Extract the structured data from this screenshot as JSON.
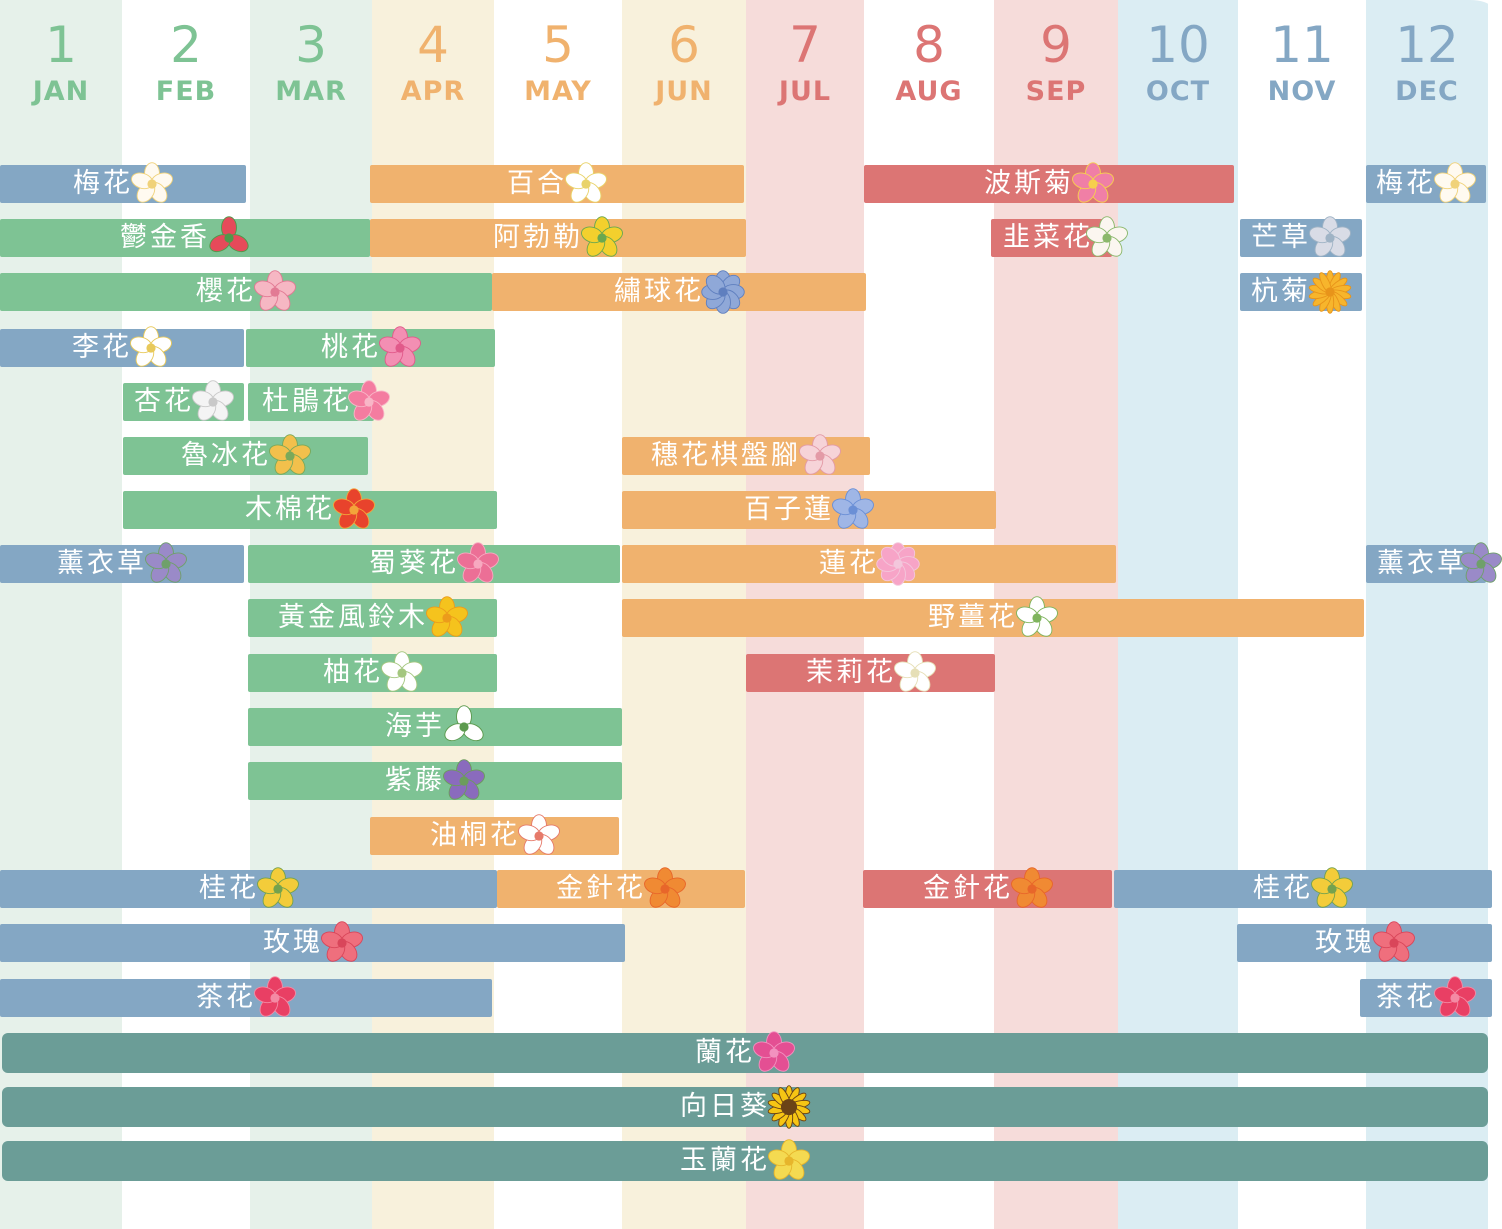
{
  "colors": {
    "spring_band": "#e6f1ea",
    "summer_band": "#f8f1dc",
    "july_sep_band": "#f6dcda",
    "winter_band": "#dbedf3",
    "white_band": "#ffffff",
    "winter_bar": "#84a7c4",
    "spring_bar": "#7ec394",
    "summer_bar": "#f0b26e",
    "autumn_bar": "#dc7574",
    "year_bar": "#6b9d97",
    "spring_text": "#7ec394",
    "summer_text": "#f0b26e",
    "autumn_text": "#dc7574",
    "winter_text": "#84a7c4"
  },
  "chart_data": {
    "type": "gantt",
    "x_unit": "month",
    "months": [
      {
        "num": "1",
        "abbr": "JAN"
      },
      {
        "num": "2",
        "abbr": "FEB"
      },
      {
        "num": "3",
        "abbr": "MAR"
      },
      {
        "num": "4",
        "abbr": "APR"
      },
      {
        "num": "5",
        "abbr": "MAY"
      },
      {
        "num": "6",
        "abbr": "JUN"
      },
      {
        "num": "7",
        "abbr": "JUL"
      },
      {
        "num": "8",
        "abbr": "AUG"
      },
      {
        "num": "9",
        "abbr": "SEP"
      },
      {
        "num": "10",
        "abbr": "OCT"
      },
      {
        "num": "11",
        "abbr": "NOV"
      },
      {
        "num": "12",
        "abbr": "DEC"
      }
    ],
    "bars": [
      {
        "label": "梅花",
        "start": 1,
        "end": 2,
        "group": "winter",
        "icon": "white-blossom-icon"
      },
      {
        "label": "百合",
        "start": 4,
        "end": 6,
        "group": "summer",
        "icon": "lily-icon"
      },
      {
        "label": "波斯菊",
        "start": 8,
        "end": 10,
        "group": "autumn",
        "icon": "cosmos-icon"
      },
      {
        "label": "梅花",
        "start": 12,
        "end": 12,
        "group": "winter",
        "icon": "white-blossom-icon"
      },
      {
        "label": "鬱金香",
        "start": 1,
        "end": 3,
        "group": "spring",
        "icon": "tulip-icon"
      },
      {
        "label": "阿勃勒",
        "start": 4,
        "end": 6,
        "group": "summer",
        "icon": "golden-shower-icon"
      },
      {
        "label": "韭菜花",
        "start": 9,
        "end": 9,
        "group": "autumn",
        "icon": "chive-flower-icon"
      },
      {
        "label": "芒草",
        "start": 11,
        "end": 11,
        "group": "winter",
        "icon": "silver-grass-icon"
      },
      {
        "label": "櫻花",
        "start": 1,
        "end": 4,
        "group": "spring",
        "icon": "sakura-icon"
      },
      {
        "label": "繡球花",
        "start": 5,
        "end": 7,
        "group": "summer",
        "icon": "hydrangea-icon"
      },
      {
        "label": "杭菊",
        "start": 11,
        "end": 11,
        "group": "winter",
        "icon": "chrysanthemum-icon"
      },
      {
        "label": "李花",
        "start": 1,
        "end": 2,
        "group": "winter",
        "icon": "plum-blossom-icon"
      },
      {
        "label": "桃花",
        "start": 3,
        "end": 4,
        "group": "spring",
        "icon": "peach-blossom-icon"
      },
      {
        "label": "杏花",
        "start": 2,
        "end": 2,
        "group": "spring",
        "icon": "apricot-blossom-icon"
      },
      {
        "label": "杜鵑花",
        "start": 3,
        "end": 3,
        "group": "spring",
        "icon": "azalea-icon"
      },
      {
        "label": "魯冰花",
        "start": 2,
        "end": 3,
        "group": "spring",
        "icon": "lupine-icon"
      },
      {
        "label": "穗花棋盤腳",
        "start": 6,
        "end": 7,
        "group": "summer",
        "icon": "barringtonia-icon"
      },
      {
        "label": "木棉花",
        "start": 2,
        "end": 4,
        "group": "spring",
        "icon": "kapok-icon"
      },
      {
        "label": "百子蓮",
        "start": 6,
        "end": 8,
        "group": "summer",
        "icon": "agapanthus-icon"
      },
      {
        "label": "薰衣草",
        "start": 1,
        "end": 2,
        "group": "winter",
        "icon": "lavender-icon"
      },
      {
        "label": "蜀葵花",
        "start": 3,
        "end": 5,
        "group": "spring",
        "icon": "hollyhock-icon"
      },
      {
        "label": "蓮花",
        "start": 6,
        "end": 9,
        "group": "summer",
        "icon": "lotus-icon"
      },
      {
        "label": "薰衣草",
        "start": 12,
        "end": 12,
        "group": "winter",
        "icon": "lavender-icon"
      },
      {
        "label": "黃金風鈴木",
        "start": 3,
        "end": 4,
        "group": "spring",
        "icon": "golden-trumpet-icon"
      },
      {
        "label": "野薑花",
        "start": 6,
        "end": 11,
        "group": "summer",
        "icon": "ginger-lily-icon"
      },
      {
        "label": "柚花",
        "start": 3,
        "end": 4,
        "group": "spring",
        "icon": "pomelo-blossom-icon"
      },
      {
        "label": "茉莉花",
        "start": 7,
        "end": 8,
        "group": "autumn",
        "icon": "jasmine-icon"
      },
      {
        "label": "海芋",
        "start": 3,
        "end": 5,
        "group": "spring",
        "icon": "calla-lily-icon"
      },
      {
        "label": "紫藤",
        "start": 3,
        "end": 5,
        "group": "spring",
        "icon": "wisteria-icon"
      },
      {
        "label": "油桐花",
        "start": 4,
        "end": 5,
        "group": "summer",
        "icon": "tung-blossom-icon"
      },
      {
        "label": "桂花",
        "start": 1,
        "end": 4,
        "group": "winter",
        "icon": "osmanthus-icon"
      },
      {
        "label": "金針花",
        "start": 5,
        "end": 6,
        "group": "summer",
        "icon": "daylily-icon"
      },
      {
        "label": "金針花",
        "start": 8,
        "end": 9,
        "group": "autumn",
        "icon": "daylily-icon"
      },
      {
        "label": "桂花",
        "start": 10,
        "end": 12,
        "group": "winter",
        "icon": "osmanthus-icon"
      },
      {
        "label": "玫瑰",
        "start": 1,
        "end": 5,
        "group": "winter",
        "icon": "rose-icon"
      },
      {
        "label": "玫瑰",
        "start": 11,
        "end": 12,
        "group": "winter",
        "icon": "rose-icon"
      },
      {
        "label": "茶花",
        "start": 1,
        "end": 4,
        "group": "winter",
        "icon": "camellia-icon"
      },
      {
        "label": "茶花",
        "start": 12,
        "end": 12,
        "group": "winter",
        "icon": "camellia-icon"
      },
      {
        "label": "蘭花",
        "start": 1,
        "end": 12,
        "group": "year",
        "icon": "orchid-icon"
      },
      {
        "label": "向日葵",
        "start": 1,
        "end": 12,
        "group": "year",
        "icon": "sunflower-icon"
      },
      {
        "label": "玉蘭花",
        "start": 1,
        "end": 12,
        "group": "year",
        "icon": "magnolia-icon"
      }
    ]
  }
}
